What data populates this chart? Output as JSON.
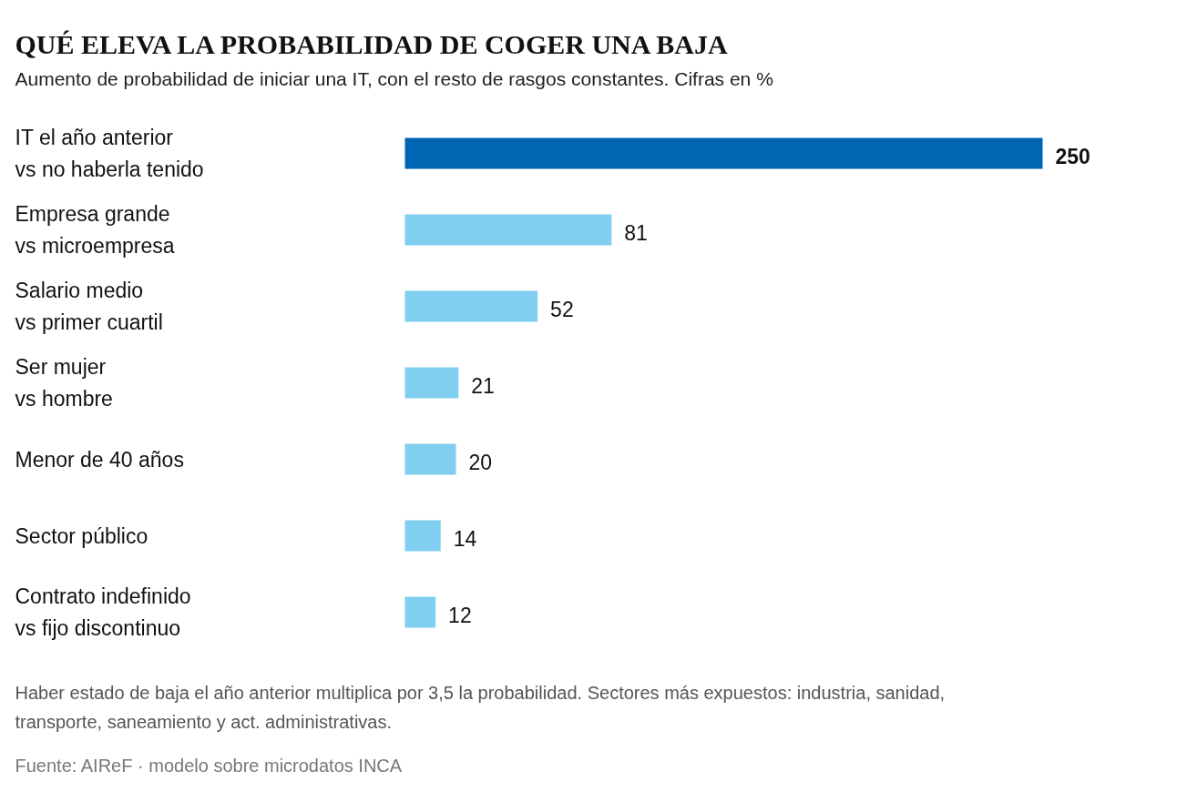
{
  "chart_data": {
    "type": "bar",
    "orientation": "horizontal",
    "title": "QUÉ ELEVA LA PROBABILIDAD DE COGER UNA BAJA",
    "subtitle": "Aumento de probabilidad de iniciar una IT, con el resto de rasgos constantes. Cifras en %",
    "categories": [
      "IT el año anterior\nvs no haberla tenido",
      "Empresa grande\nvs microempresa",
      "Salario medio\nvs primer cuartil",
      "Ser mujer\nvs hombre",
      "Menor de 40 años",
      "Sector público",
      "Contrato indefinido\nvs fijo discontinuo"
    ],
    "values": [
      250,
      81,
      52,
      21,
      20,
      14,
      12
    ],
    "colors": [
      "#0066b3",
      "#80cef0",
      "#80cef0",
      "#80cef0",
      "#80cef0",
      "#80cef0",
      "#80cef0"
    ],
    "data_labels": true,
    "annotations": [
      "Haber estado de baja el año anterior multiplica por 3,5 la probabilidad. Sectores más expuestos: industria, sanidad, transporte, saneamiento y act. administrativas.",
      "Fuente: AIReF · modelo sobre microdatos INCA"
    ]
  }
}
